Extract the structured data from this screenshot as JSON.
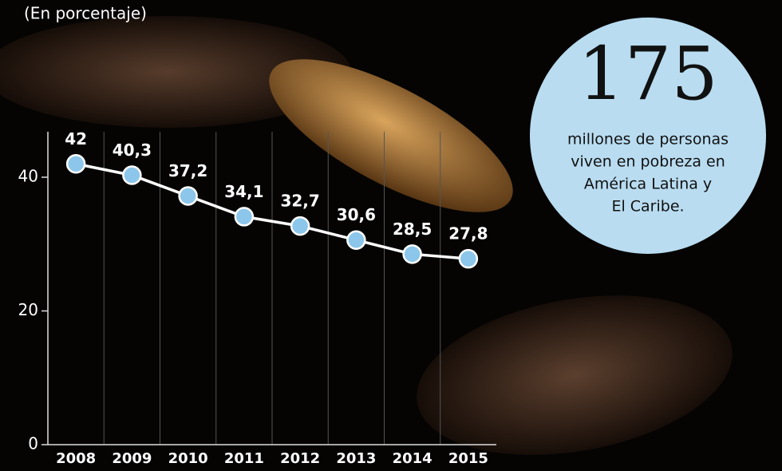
{
  "chart_data": {
    "type": "line",
    "subtitle": "(En porcentaje)",
    "categories": [
      "2008",
      "2009",
      "2010",
      "2011",
      "2012",
      "2013",
      "2014",
      "2015"
    ],
    "values": [
      42,
      40.3,
      37.2,
      34.1,
      32.7,
      30.6,
      28.5,
      27.8
    ],
    "value_labels": [
      "42",
      "40,3",
      "37,2",
      "34,1",
      "32,7",
      "30,6",
      "28,5",
      "27,8"
    ],
    "ylim": [
      0,
      48
    ],
    "yticks": [
      0,
      20,
      40
    ],
    "line_color": "#ffffff",
    "marker_color": "#8cc6ea",
    "grid": true,
    "annotation": {
      "number": "175",
      "lines": [
        "millones de personas",
        "viven en pobreza en",
        "América Latina y",
        "El Caribe."
      ]
    }
  }
}
